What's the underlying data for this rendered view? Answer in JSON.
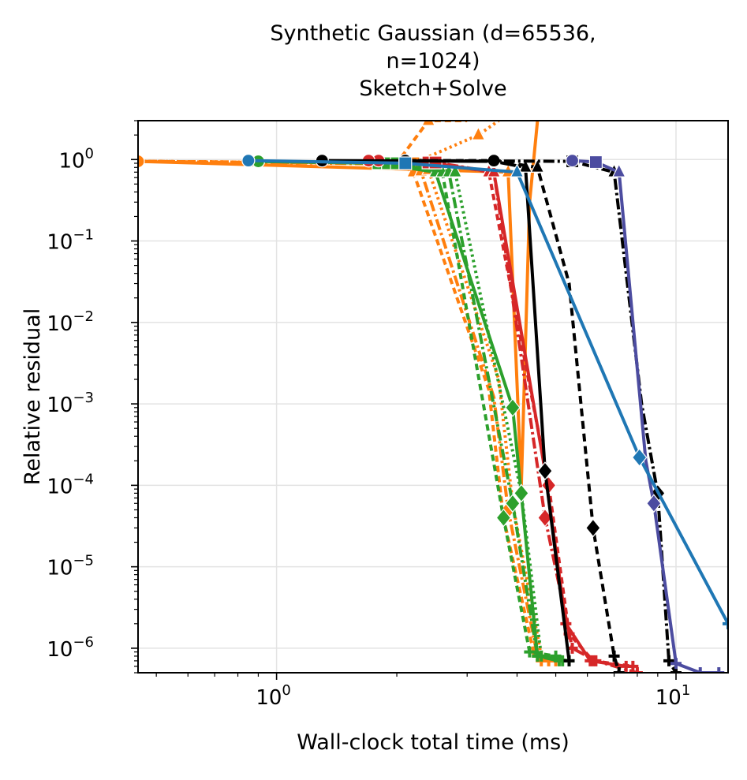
{
  "chart_data": {
    "type": "line",
    "title_lines": [
      "Synthetic Gaussian (d=65536,",
      "n=1024)",
      "Sketch+Solve"
    ],
    "xlabel": "Wall-clock total time (ms)",
    "ylabel": "Relative residual",
    "x_scale": "log",
    "y_scale": "log",
    "xlim": [
      0.45,
      13.5
    ],
    "ylim": [
      5e-07,
      3.0
    ],
    "grid": true,
    "legend": "none",
    "x_ticks": [
      {
        "value": 1,
        "base": "10",
        "exp": "0"
      },
      {
        "value": 10,
        "base": "10",
        "exp": "1"
      }
    ],
    "y_ticks": [
      {
        "value": 1,
        "base": "10",
        "exp": "0"
      },
      {
        "value": 0.1,
        "base": "10",
        "exp": "−1"
      },
      {
        "value": 0.01,
        "base": "10",
        "exp": "−2"
      },
      {
        "value": 0.001,
        "base": "10",
        "exp": "−3"
      },
      {
        "value": 0.0001,
        "base": "10",
        "exp": "−4"
      },
      {
        "value": 1e-05,
        "base": "10",
        "exp": "−5"
      },
      {
        "value": 1e-06,
        "base": "10",
        "exp": "−6"
      }
    ],
    "series": [
      {
        "color": "#ff7f0e",
        "dash": "8,5",
        "x": [
          0.45,
          2.0,
          2.2,
          3.4,
          3.7,
          4.4,
          4.6
        ],
        "y": [
          0.95,
          0.9,
          0.7,
          0.0015,
          4e-05,
          9e-07,
          7e-07
        ],
        "markers": [
          "circle",
          "square",
          "triangle",
          "none",
          "diamond",
          "plus",
          "plus"
        ]
      },
      {
        "color": "#ff7f0e",
        "dash": "14,4,3,4",
        "x": [
          0.45,
          2.1,
          2.3,
          3.5,
          3.8,
          4.5,
          4.8
        ],
        "y": [
          0.95,
          0.88,
          0.72,
          0.0012,
          5e-05,
          8e-07,
          7e-07
        ],
        "markers": [
          "circle",
          "square",
          "triangle",
          "none",
          "diamond",
          "plus",
          "plus"
        ]
      },
      {
        "color": "#ff7f0e",
        "dash": "3,4",
        "x": [
          0.45,
          2.1,
          2.4,
          3.6,
          3.9,
          4.6,
          5.0
        ],
        "y": [
          0.95,
          0.9,
          0.75,
          0.002,
          6e-05,
          8e-07,
          7e-07
        ],
        "markers": [
          "circle",
          "square",
          "triangle",
          "none",
          "diamond",
          "plus",
          "plus"
        ]
      },
      {
        "color": "#ff7f0e",
        "dash": "8,5",
        "x": [
          0.45,
          2.0,
          2.4,
          3.0
        ],
        "y": [
          0.95,
          0.9,
          3.0,
          3.0
        ],
        "markers": [
          "circle",
          "square",
          "triangle",
          "none"
        ]
      },
      {
        "color": "#ff7f0e",
        "dash": "3,4",
        "x": [
          0.45,
          2.2,
          3.2,
          3.6
        ],
        "y": [
          0.95,
          0.9,
          2.0,
          3.0
        ],
        "markers": [
          "circle",
          "square",
          "triangle",
          "none"
        ]
      },
      {
        "color": "#ff7f0e",
        "dash": "",
        "x": [
          0.45,
          3.8,
          4.1,
          4.3,
          4.5
        ],
        "y": [
          0.95,
          0.7,
          0.0001,
          0.3,
          3.0
        ],
        "markers": [
          "circle",
          "triangle",
          "none",
          "none",
          "none"
        ]
      },
      {
        "color": "#2ca02c",
        "dash": "",
        "x": [
          0.9,
          1.8,
          2.5,
          3.9,
          4.5,
          5.4
        ],
        "y": [
          0.95,
          0.9,
          0.7,
          0.0009,
          8e-07,
          7e-07
        ],
        "markers": [
          "circle",
          "square",
          "triangle",
          "diamond",
          "plus",
          "plus"
        ]
      },
      {
        "color": "#2ca02c",
        "dash": "8,5",
        "x": [
          0.9,
          1.9,
          2.6,
          3.7,
          4.3,
          5.0
        ],
        "y": [
          0.95,
          0.9,
          0.7,
          4e-05,
          9e-07,
          8e-07
        ],
        "markers": [
          "circle",
          "square",
          "triangle",
          "diamond",
          "plus",
          "plus"
        ]
      },
      {
        "color": "#2ca02c",
        "dash": "14,4,3,4",
        "x": [
          0.9,
          1.9,
          2.7,
          3.9,
          4.5,
          5.1
        ],
        "y": [
          0.95,
          0.9,
          0.7,
          6e-05,
          8e-07,
          7e-07
        ],
        "markers": [
          "circle",
          "square",
          "triangle",
          "diamond",
          "plus",
          "plus"
        ]
      },
      {
        "color": "#2ca02c",
        "dash": "3,4",
        "x": [
          0.9,
          2.0,
          2.8,
          4.1,
          4.6,
          5.2
        ],
        "y": [
          0.95,
          0.9,
          0.7,
          8e-05,
          8e-07,
          7e-07
        ],
        "markers": [
          "circle",
          "square",
          "triangle",
          "diamond",
          "plus",
          "plus"
        ]
      },
      {
        "color": "#d62728",
        "dash": "",
        "x": [
          1.7,
          2.4,
          3.5,
          4.7,
          5.3,
          6.1,
          7.5
        ],
        "y": [
          0.97,
          0.92,
          0.7,
          0.00015,
          2e-06,
          7e-07,
          6e-07
        ],
        "markers": [
          "circle",
          "square",
          "triangle",
          "diamond",
          "plus",
          "plus",
          "plus"
        ]
      },
      {
        "color": "#d62728",
        "dash": "8,5",
        "x": [
          1.8,
          2.5,
          3.4,
          4.8,
          5.4,
          6.2,
          7.8
        ],
        "y": [
          0.97,
          0.92,
          0.7,
          0.0001,
          1.5e-06,
          7e-07,
          6e-07
        ],
        "markers": [
          "circle",
          "square",
          "triangle",
          "diamond",
          "plus",
          "plus",
          "plus"
        ]
      },
      {
        "color": "#d62728",
        "dash": "14,4,3,4",
        "x": [
          1.7,
          2.5,
          3.5,
          4.7,
          5.5,
          6.3,
          8.0
        ],
        "y": [
          0.97,
          0.92,
          0.7,
          4e-05,
          1e-06,
          7e-07,
          5e-07
        ],
        "markers": [
          "circle",
          "square",
          "triangle",
          "diamond",
          "plus",
          "plus",
          "plus"
        ]
      },
      {
        "color": "#000000",
        "dash": "",
        "x": [
          1.3,
          3.5,
          4.2,
          4.7,
          5.4
        ],
        "y": [
          0.97,
          0.95,
          0.8,
          0.00015,
          7e-07
        ],
        "markers": [
          "circle",
          "circle",
          "triangle",
          "diamond",
          "plus"
        ]
      },
      {
        "color": "#000000",
        "dash": "10,6",
        "x": [
          2.1,
          3.5,
          4.5,
          5.4,
          6.2,
          7.0,
          7.2
        ],
        "y": [
          0.97,
          0.97,
          0.8,
          0.03,
          3e-05,
          8e-07,
          5e-07
        ],
        "markers": [
          "circle",
          "circle",
          "triangle",
          "none",
          "diamond",
          "plus",
          "plus"
        ]
      },
      {
        "color": "#000000",
        "dash": "14,4,3,4",
        "x": [
          2.1,
          5.5,
          7.0,
          8.2,
          9.0,
          9.6,
          10.0
        ],
        "y": [
          0.97,
          0.95,
          0.7,
          0.001,
          8e-05,
          7e-07,
          5e-07
        ],
        "markers": [
          "circle",
          "square",
          "triangle",
          "none",
          "diamond",
          "plus",
          "plus"
        ]
      },
      {
        "color": "#4c4ca0",
        "dash": "",
        "x": [
          5.5,
          6.3,
          7.2,
          8.4,
          8.8,
          10.0,
          11.5,
          12.8
        ],
        "y": [
          0.97,
          0.93,
          0.7,
          0.0002,
          6e-05,
          6.5e-07,
          5e-07,
          5e-07
        ],
        "markers": [
          "circle",
          "square",
          "triangle",
          "none",
          "diamond",
          "plus",
          "plus",
          "plus"
        ]
      },
      {
        "color": "#1f77b4",
        "dash": "",
        "x": [
          0.85,
          2.1,
          4.0,
          8.1,
          13.5
        ],
        "y": [
          0.97,
          0.9,
          0.7,
          0.00022,
          2e-06
        ],
        "markers": [
          "circle",
          "square",
          "triangle",
          "diamond",
          "plus"
        ]
      }
    ]
  }
}
